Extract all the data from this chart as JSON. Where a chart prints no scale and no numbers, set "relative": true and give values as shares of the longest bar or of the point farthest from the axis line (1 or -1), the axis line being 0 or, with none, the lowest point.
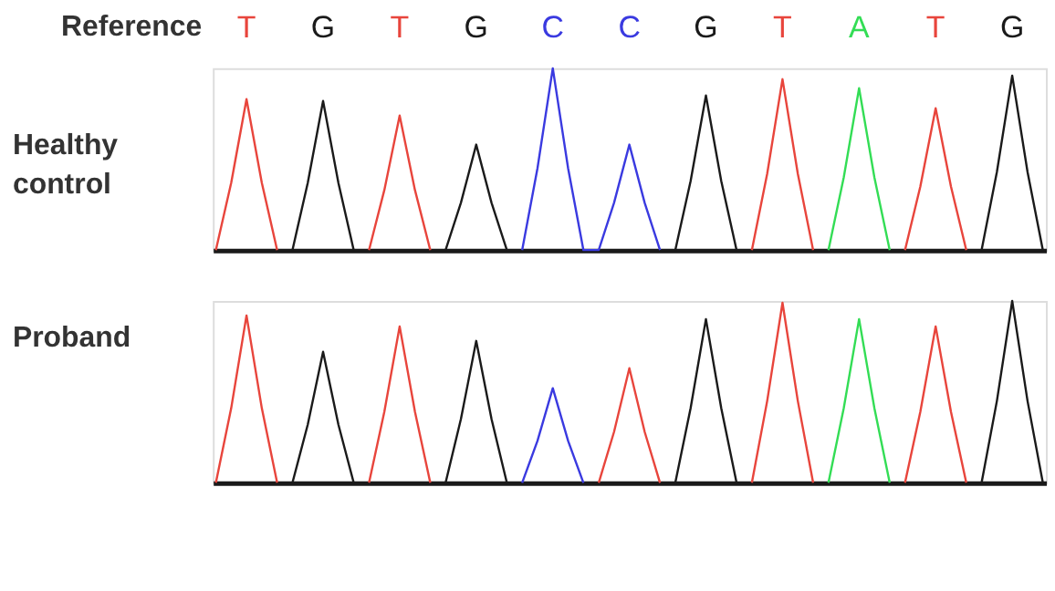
{
  "chart_data": [
    {
      "type": "line",
      "title": "Healthy control",
      "xlabel": "Reference",
      "relative": true,
      "categories": [
        null,
        null,
        "T",
        null,
        null,
        null,
        null,
        "G",
        null,
        null,
        null,
        null,
        "T",
        null,
        null,
        null,
        null,
        "G",
        null,
        null,
        null,
        null,
        "C",
        null,
        null,
        null,
        null,
        "C",
        null,
        null,
        null,
        null,
        "G",
        null,
        null,
        null,
        null,
        "T",
        null,
        null,
        null,
        null,
        "A",
        null,
        null,
        null,
        null,
        "T",
        null,
        null,
        null,
        null,
        "G",
        null,
        null
      ],
      "series": [
        {
          "color": "#e8453c",
          "values": [
            0,
            0.37,
            0.83,
            0.37,
            0,
            null,
            null,
            null,
            null,
            null,
            0,
            0.33,
            0.74,
            0.33,
            0,
            null,
            null,
            null,
            null,
            null,
            null,
            null,
            null,
            null,
            null,
            null,
            null,
            null,
            null,
            null,
            null,
            null,
            null,
            null,
            null,
            0,
            0.42,
            0.94,
            0.42,
            0,
            null,
            null,
            null,
            null,
            null,
            0,
            0.35,
            0.78,
            0.35,
            0,
            null,
            null,
            null,
            null,
            null
          ]
        },
        {
          "color": "#1a1a1a",
          "values": [
            null,
            null,
            null,
            null,
            null,
            0,
            0.37,
            0.82,
            0.37,
            0,
            null,
            null,
            null,
            null,
            null,
            0,
            0.26,
            0.58,
            0.26,
            0,
            null,
            null,
            null,
            null,
            null,
            null,
            null,
            null,
            null,
            null,
            0,
            0.38,
            0.85,
            0.38,
            0,
            null,
            null,
            null,
            null,
            null,
            null,
            null,
            null,
            null,
            null,
            null,
            null,
            null,
            null,
            null,
            0,
            0.43,
            0.96,
            0.43,
            0
          ]
        },
        {
          "color": "#3a3ae0",
          "values": [
            null,
            null,
            null,
            null,
            null,
            null,
            null,
            null,
            null,
            null,
            null,
            null,
            null,
            null,
            null,
            null,
            null,
            null,
            null,
            null,
            0,
            0.45,
            1,
            0.45,
            0,
            0,
            0.26,
            0.58,
            0.26,
            0,
            null,
            null,
            null,
            null,
            null,
            null,
            null,
            null,
            null,
            null,
            null,
            null,
            null,
            null,
            null,
            null,
            null,
            null,
            null,
            null,
            null,
            null,
            null,
            null,
            null
          ]
        },
        {
          "color": "#33dd55",
          "values": [
            null,
            null,
            null,
            null,
            null,
            null,
            null,
            null,
            null,
            null,
            null,
            null,
            null,
            null,
            null,
            null,
            null,
            null,
            null,
            null,
            null,
            null,
            null,
            null,
            null,
            null,
            null,
            null,
            null,
            null,
            null,
            null,
            null,
            null,
            null,
            null,
            null,
            null,
            null,
            null,
            0,
            0.4,
            0.89,
            0.4,
            0,
            null,
            null,
            null,
            null,
            null,
            null,
            null,
            null,
            null,
            null
          ]
        }
      ]
    },
    {
      "type": "line",
      "title": "Proband",
      "relative": true,
      "categories": [
        null,
        null,
        null,
        null,
        null,
        null,
        null,
        null,
        null,
        null,
        null,
        null,
        null,
        null,
        null,
        null,
        null,
        null,
        null,
        null,
        null,
        null,
        null,
        null,
        null,
        null,
        null,
        null,
        null,
        null,
        null,
        null,
        null,
        null,
        null,
        null,
        null,
        null,
        null,
        null,
        null,
        null,
        null,
        null,
        null,
        null,
        null,
        null,
        null,
        null,
        null,
        null,
        null,
        null,
        null
      ],
      "series": [
        {
          "color": "#e8453c",
          "values": [
            0,
            0.41,
            0.92,
            0.41,
            0,
            null,
            null,
            null,
            null,
            null,
            0,
            0.39,
            0.86,
            0.39,
            0,
            null,
            null,
            null,
            null,
            null,
            null,
            null,
            null,
            null,
            null,
            0,
            0.28,
            0.63,
            0.28,
            0,
            null,
            null,
            null,
            null,
            null,
            0,
            0.45,
            0.99,
            0.45,
            0,
            null,
            null,
            null,
            null,
            null,
            0,
            0.39,
            0.86,
            0.39,
            0,
            null,
            null,
            null,
            null,
            null
          ]
        },
        {
          "color": "#1a1a1a",
          "values": [
            null,
            null,
            null,
            null,
            null,
            0,
            0.32,
            0.72,
            0.32,
            0,
            null,
            null,
            null,
            null,
            null,
            0,
            0.35,
            0.78,
            0.35,
            0,
            null,
            null,
            null,
            null,
            null,
            null,
            null,
            null,
            null,
            null,
            0,
            0.41,
            0.9,
            0.41,
            0,
            null,
            null,
            null,
            null,
            null,
            null,
            null,
            null,
            null,
            null,
            null,
            null,
            null,
            null,
            null,
            0,
            0.45,
            1,
            0.45,
            0
          ]
        },
        {
          "color": "#3a3ae0",
          "values": [
            null,
            null,
            null,
            null,
            null,
            null,
            null,
            null,
            null,
            null,
            null,
            null,
            null,
            null,
            null,
            null,
            null,
            null,
            null,
            null,
            0,
            0.23,
            0.52,
            0.23,
            0,
            null,
            null,
            null,
            null,
            null,
            null,
            null,
            null,
            null,
            null,
            null,
            null,
            null,
            null,
            null,
            null,
            null,
            null,
            null,
            null,
            null,
            null,
            null,
            null,
            null,
            null,
            null,
            null,
            null,
            null
          ]
        },
        {
          "color": "#33dd55",
          "values": [
            null,
            null,
            null,
            null,
            null,
            null,
            null,
            null,
            null,
            null,
            null,
            null,
            null,
            null,
            null,
            null,
            null,
            null,
            null,
            null,
            null,
            null,
            null,
            null,
            null,
            null,
            null,
            null,
            null,
            null,
            null,
            null,
            null,
            null,
            null,
            null,
            null,
            null,
            null,
            null,
            0,
            0.41,
            0.9,
            0.41,
            0,
            null,
            null,
            null,
            null,
            null,
            null,
            null,
            null,
            null,
            null
          ]
        }
      ]
    }
  ]
}
